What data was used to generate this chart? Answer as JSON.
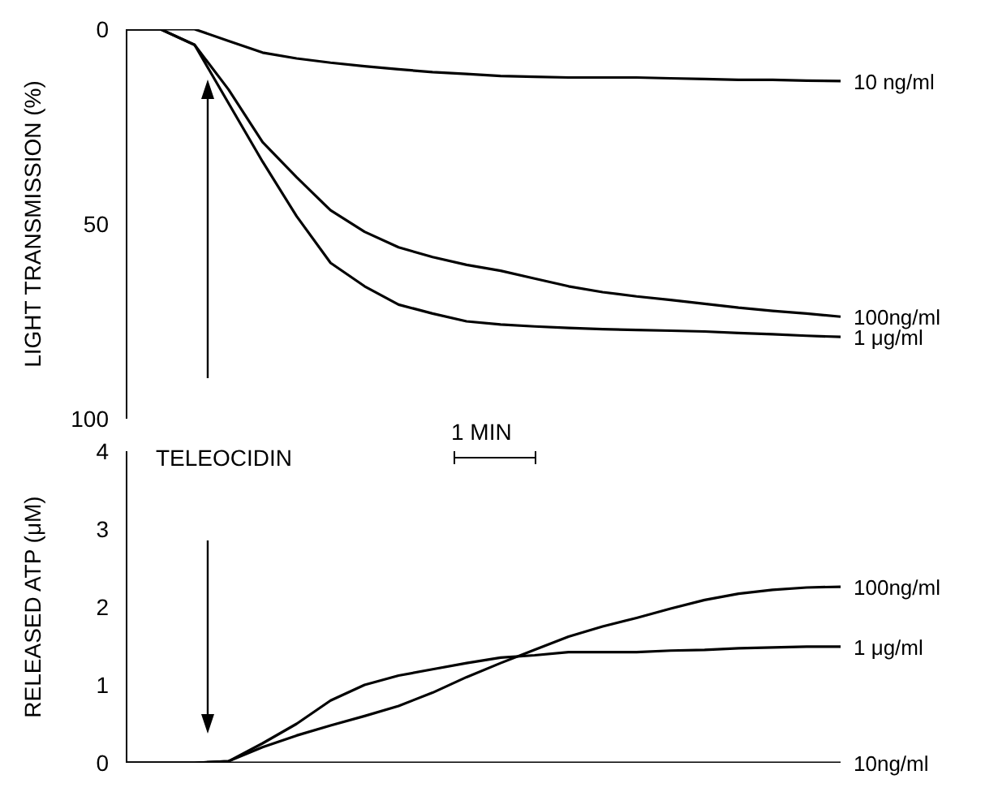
{
  "chart_data": [
    {
      "type": "line",
      "ylabel": "LIGHT TRANSMISSION (%)",
      "categories": [
        null,
        null,
        null,
        null,
        null,
        null,
        null,
        null,
        null,
        null,
        null,
        null,
        null,
        null,
        null,
        null,
        null,
        null,
        null,
        null,
        null,
        null
      ],
      "ylim": [
        100,
        0
      ],
      "yticks": [
        0,
        50,
        100
      ],
      "tick_labels": "y",
      "marker": "none",
      "line_style": "solid",
      "series": [
        {
          "name": "10 ng/ml",
          "color": "#000000",
          "values": [
            0,
            0,
            0,
            3,
            6,
            7.5,
            8.6,
            9.5,
            10.3,
            11,
            11.5,
            12,
            12.2,
            12.4,
            12.4,
            12.4,
            12.6,
            12.8,
            13,
            13,
            13.2,
            13.3
          ]
        },
        {
          "name": "100ng/ml",
          "color": "#000000",
          "values": [
            0,
            0,
            4,
            15.5,
            29,
            38,
            46.5,
            52,
            56,
            58.5,
            60.5,
            62,
            64,
            66,
            67.5,
            68.6,
            69.5,
            70.5,
            71.5,
            72.3,
            73,
            73.8
          ]
        },
        {
          "name": "1 μg/ml",
          "color": "#000000",
          "values": [
            0,
            0,
            4,
            19,
            34,
            48,
            60,
            66,
            70.7,
            73,
            75,
            75.8,
            76.3,
            76.7,
            77,
            77.2,
            77.4,
            77.6,
            78,
            78.3,
            78.7,
            79
          ]
        }
      ]
    },
    {
      "type": "line",
      "ylabel": "RELEASED ATP (μM)",
      "categories": [
        null,
        null,
        null,
        null,
        null,
        null,
        null,
        null,
        null,
        null,
        null,
        null,
        null,
        null,
        null,
        null,
        null,
        null,
        null,
        null,
        null,
        null
      ],
      "ylim": [
        0,
        4
      ],
      "yticks": [
        0,
        1,
        2,
        3,
        4
      ],
      "tick_labels": "y",
      "marker": "none",
      "line_style": "solid",
      "annotations": [
        "TELEOCIDIN",
        "1 MIN"
      ],
      "series": [
        {
          "name": "100ng/ml",
          "color": "#000000",
          "values": [
            0,
            0,
            0,
            0.02,
            0.2,
            0.35,
            0.48,
            0.6,
            0.73,
            0.9,
            1.1,
            1.28,
            1.45,
            1.62,
            1.75,
            1.86,
            1.98,
            2.09,
            2.17,
            2.22,
            2.25,
            2.26
          ]
        },
        {
          "name": "1 μg/ml",
          "color": "#000000",
          "values": [
            0,
            0,
            0,
            0.02,
            0.25,
            0.5,
            0.8,
            1.0,
            1.12,
            1.2,
            1.28,
            1.35,
            1.38,
            1.42,
            1.42,
            1.42,
            1.44,
            1.45,
            1.47,
            1.48,
            1.49,
            1.49
          ]
        },
        {
          "name": "10ng/ml",
          "color": "#000000",
          "values": [
            0,
            0,
            0,
            0,
            0,
            0,
            0,
            0,
            0,
            0,
            0,
            0,
            0,
            0,
            0,
            0,
            0,
            0,
            0,
            0,
            0,
            0
          ]
        }
      ]
    }
  ]
}
